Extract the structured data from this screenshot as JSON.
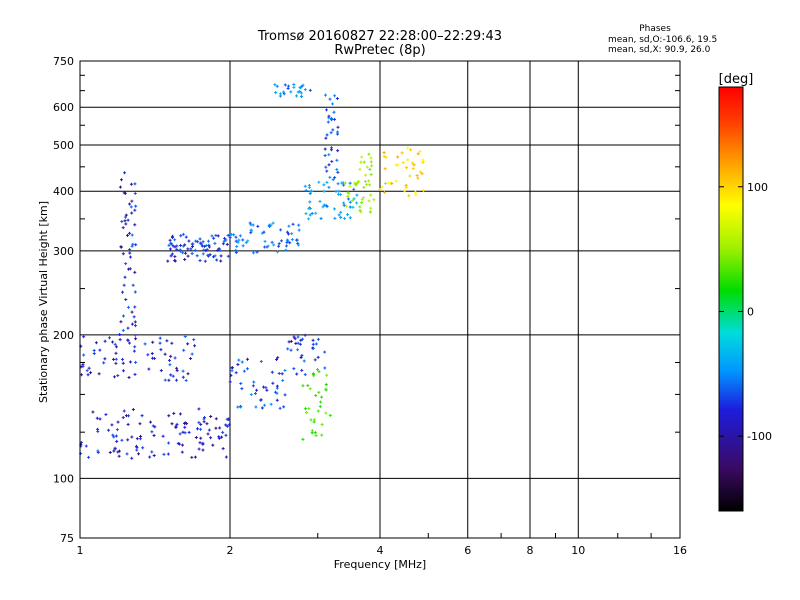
{
  "chart_data": {
    "type": "scatter",
    "title": "Tromsø 20160827 22:28:00–22:29:43",
    "subtitle": "RwPretec (8p)",
    "xlabel": "Frequency [MHz]",
    "ylabel": "Stationary phase Virtual Height [km]",
    "x_scale": "log",
    "y_scale": "log",
    "xlim": [
      1,
      16
    ],
    "ylim": [
      75,
      750
    ],
    "x_ticks": [
      1,
      2,
      4,
      6,
      8,
      10,
      16
    ],
    "x_tick_labels": [
      "1",
      "2",
      "4",
      "6",
      "8",
      "10",
      "16"
    ],
    "y_ticks": [
      75,
      100,
      200,
      300,
      400,
      500,
      600,
      750
    ],
    "y_tick_labels": [
      "75",
      "100",
      "200",
      "300",
      "400",
      "500",
      "600",
      "750"
    ],
    "grid": true,
    "stats": {
      "heading": "Phases",
      "line_o": "mean, sd,O:-106.6, 19.5",
      "line_x": "mean, sd,X:  90.9, 26.0"
    },
    "colorbar": {
      "label": "[deg]",
      "min": -160,
      "max": 180,
      "ticks": [
        100,
        0,
        -100
      ],
      "tick_labels": [
        "100",
        "0",
        "-100"
      ]
    },
    "trace_families": [
      {
        "x_range": [
          1.0,
          2.0
        ],
        "y_range": [
          110,
          140
        ],
        "phase": -125,
        "density": 30
      },
      {
        "x_range": [
          1.0,
          1.7
        ],
        "y_range": [
          160,
          200
        ],
        "phase": -120,
        "density": 20
      },
      {
        "x_range": [
          1.2,
          1.3
        ],
        "y_range": [
          200,
          450
        ],
        "phase": -120,
        "density": 14
      },
      {
        "x_range": [
          1.5,
          2.0
        ],
        "y_range": [
          285,
          325
        ],
        "phase": -115,
        "density": 20
      },
      {
        "x_range": [
          2.0,
          2.8
        ],
        "y_range": [
          295,
          345
        ],
        "phase": -95,
        "density": 15
      },
      {
        "x_range": [
          2.0,
          2.6
        ],
        "y_range": [
          140,
          180
        ],
        "phase": -110,
        "density": 12
      },
      {
        "x_range": [
          2.6,
          3.1
        ],
        "y_range": [
          165,
          200
        ],
        "phase": -115,
        "density": 8
      },
      {
        "x_range": [
          2.8,
          3.2
        ],
        "y_range": [
          120,
          170
        ],
        "phase": 20,
        "density": 8
      },
      {
        "x_range": [
          2.8,
          3.6
        ],
        "y_range": [
          350,
          420
        ],
        "phase": -80,
        "density": 14
      },
      {
        "x_range": [
          3.1,
          3.3
        ],
        "y_range": [
          420,
          640
        ],
        "phase": -105,
        "density": 9
      },
      {
        "x_range": [
          3.4,
          3.9
        ],
        "y_range": [
          360,
          480
        ],
        "phase": 50,
        "density": 10
      },
      {
        "x_range": [
          4.0,
          5.0
        ],
        "y_range": [
          390,
          500
        ],
        "phase": 120,
        "density": 10
      },
      {
        "x_range": [
          2.45,
          2.9
        ],
        "y_range": [
          630,
          670
        ],
        "phase": -90,
        "density": 6
      }
    ]
  }
}
